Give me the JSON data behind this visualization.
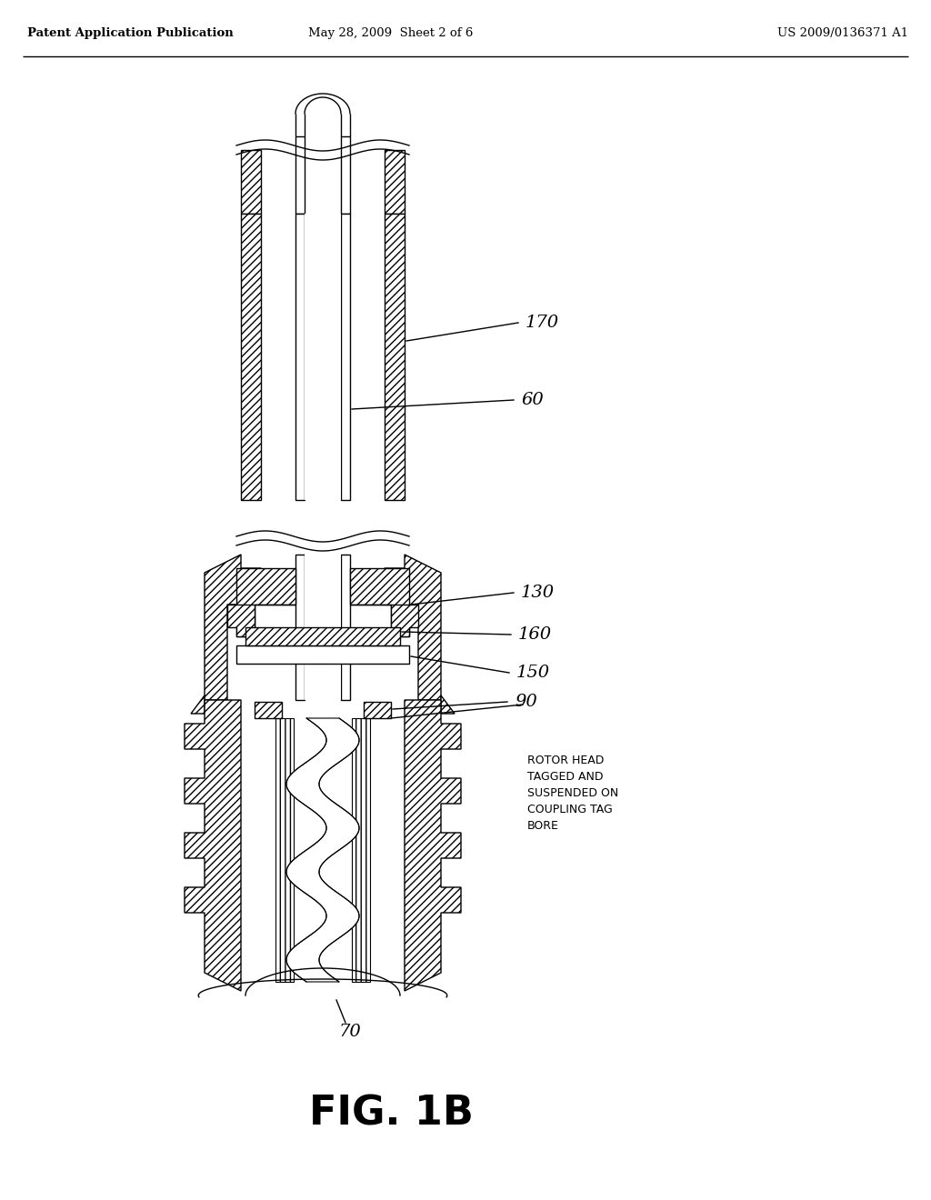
{
  "header_left": "Patent Application Publication",
  "header_mid": "May 28, 2009  Sheet 2 of 6",
  "header_right": "US 2009/0136371 A1",
  "figure_label": "FIG. 1B",
  "bg_color": "#ffffff",
  "line_color": "#000000",
  "label_170": "170",
  "label_60": "60",
  "label_130": "130",
  "label_160": "160",
  "label_150": "150",
  "label_90": "90",
  "label_70": "70",
  "rotor_text": "ROTOR HEAD\nTAGGED AND\nSUSPENDED ON\nCOUPLING TAG\nBORE"
}
